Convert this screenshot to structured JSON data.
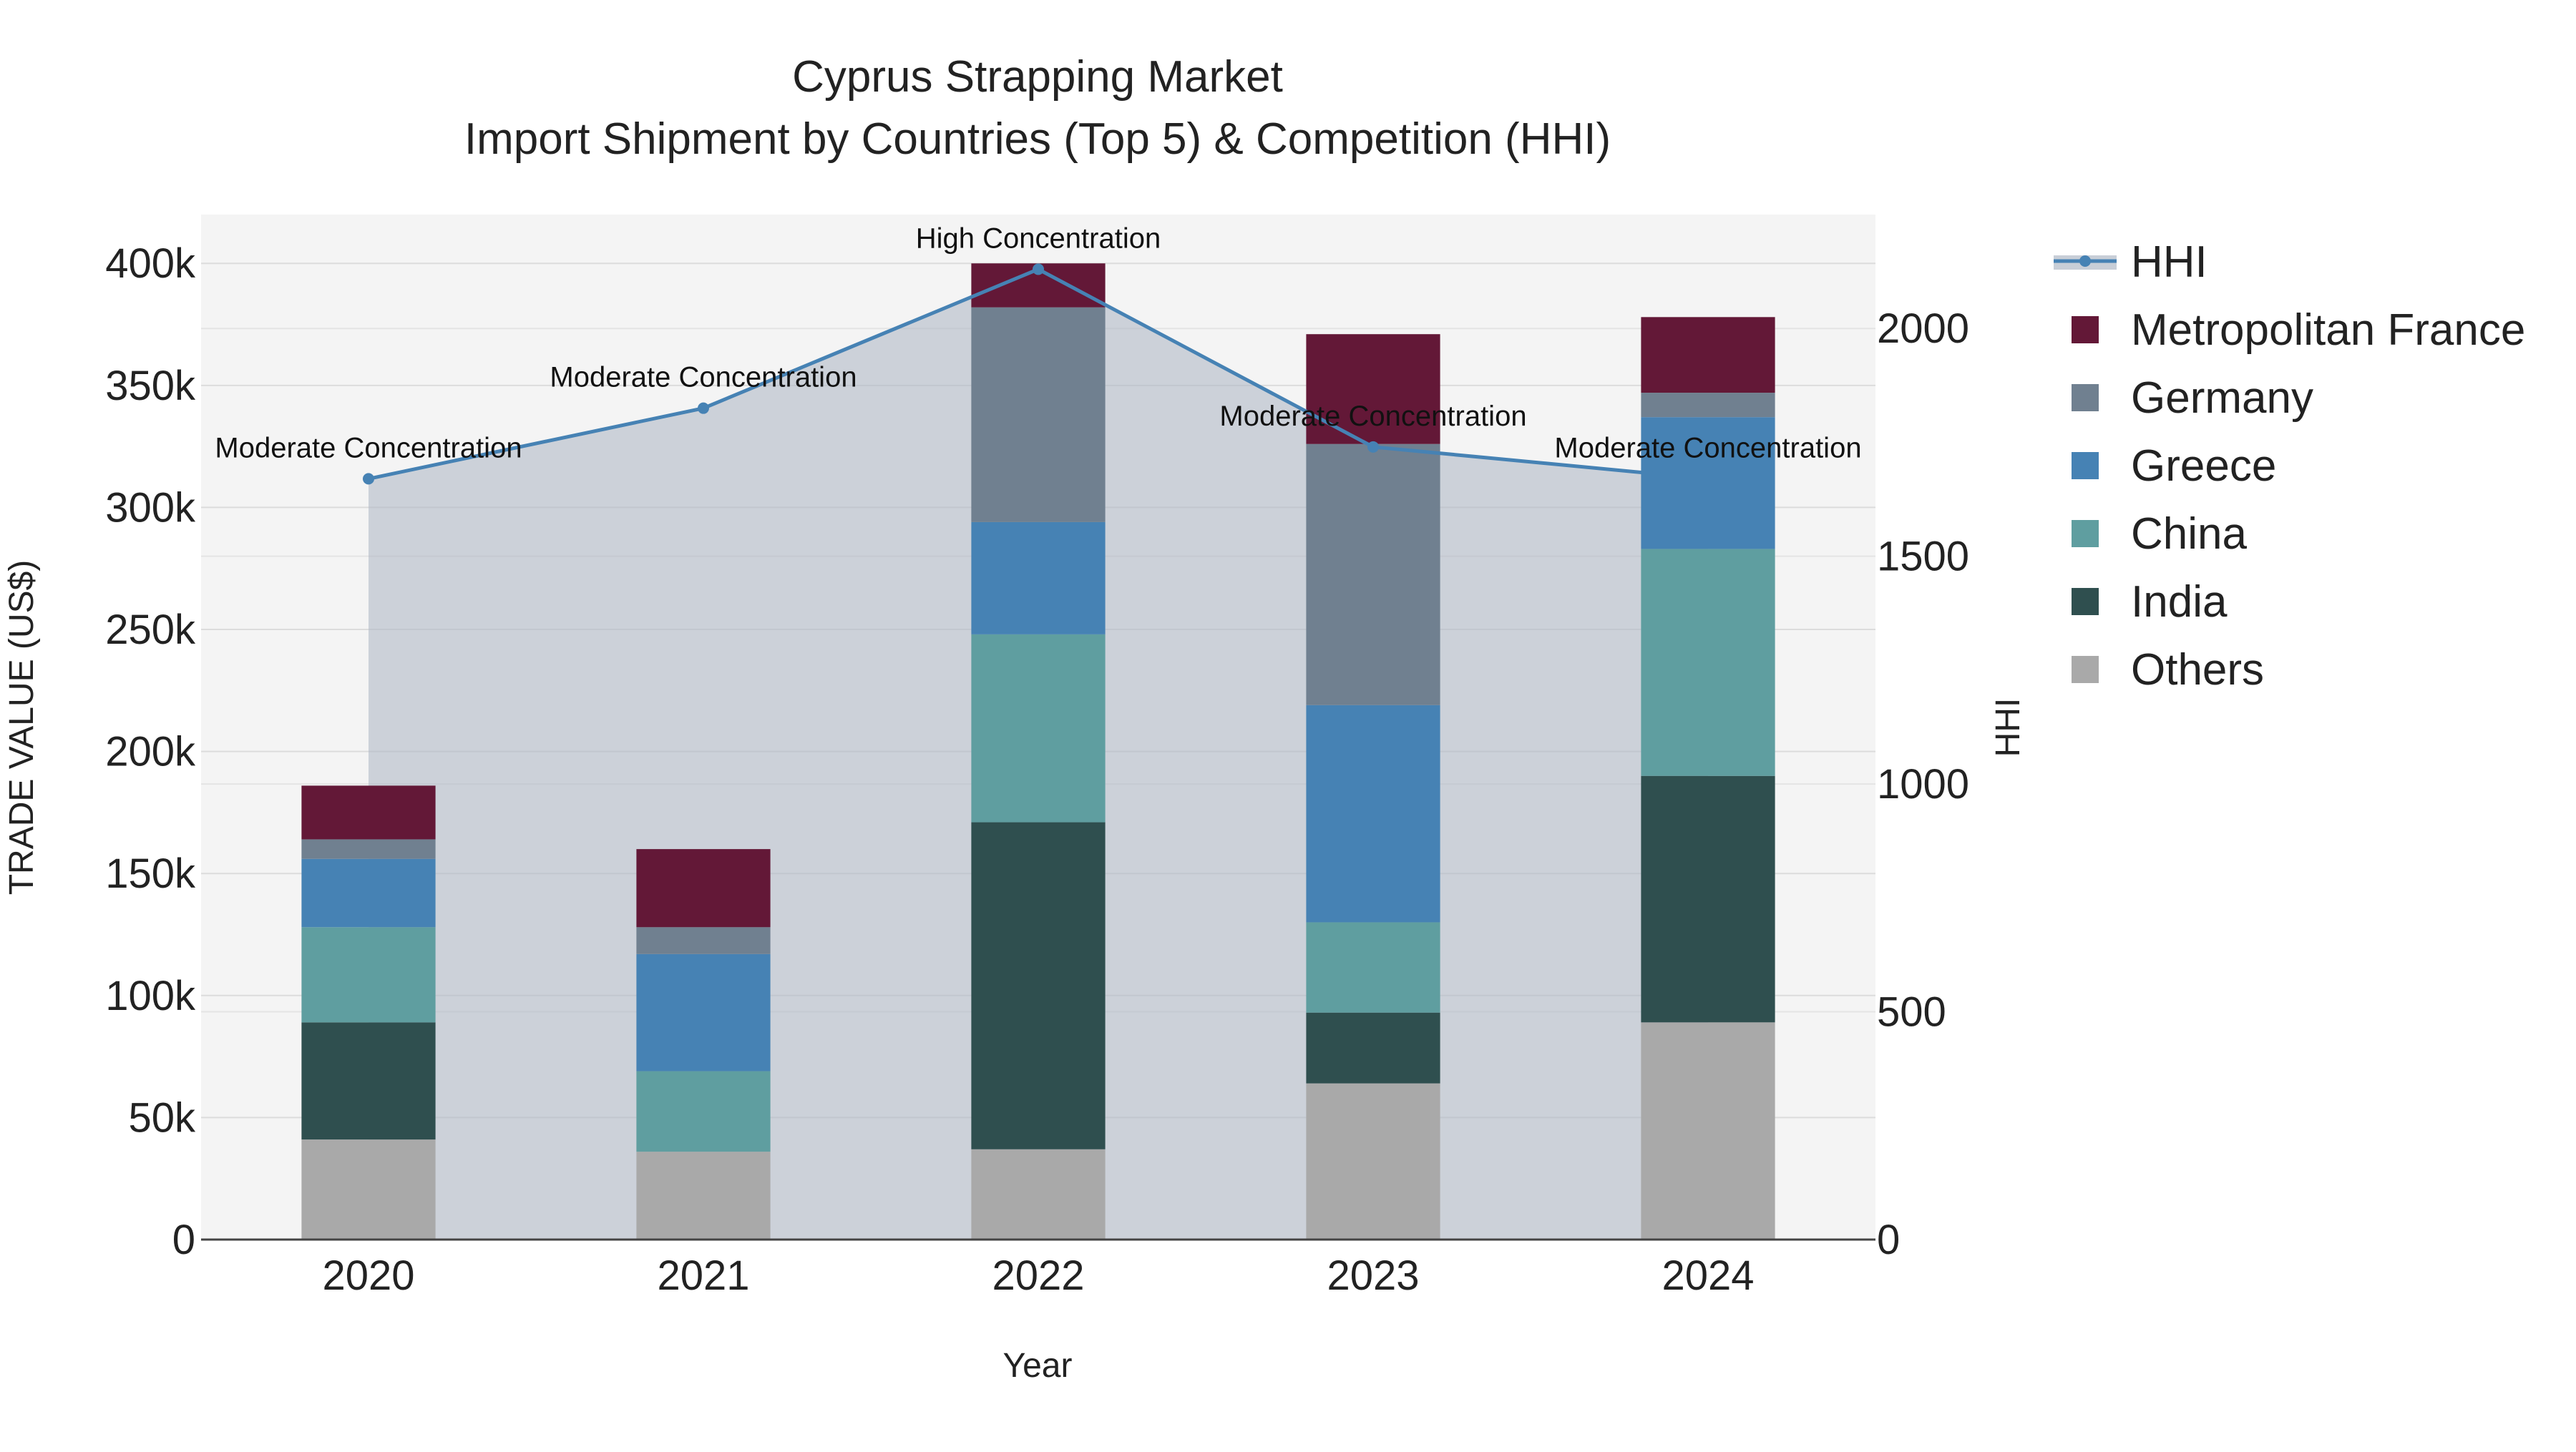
{
  "chart_data": {
    "type": "bar",
    "title": "Cyprus Strapping Market",
    "subtitle": "Import Shipment by Countries (Top 5) & Competition (HHI)",
    "xlabel": "Year",
    "ylabel": "TRADE VALUE (US$)",
    "y2label": "HHI",
    "categories": [
      "2020",
      "2021",
      "2022",
      "2023",
      "2024"
    ],
    "ylim": [
      0,
      420000
    ],
    "y_ticks": [
      0,
      50000,
      100000,
      150000,
      200000,
      250000,
      300000,
      350000,
      400000
    ],
    "y_tick_labels": [
      "0",
      "50k",
      "100k",
      "150k",
      "200k",
      "250k",
      "300k",
      "350k",
      "400k"
    ],
    "y2lim": [
      0,
      2250
    ],
    "y2_ticks": [
      0,
      500,
      1000,
      1500,
      2000
    ],
    "y2_tick_labels": [
      "0",
      "500",
      "1000",
      "1500",
      "2000"
    ],
    "series": [
      {
        "name": "Others",
        "color": "#a9a9a9",
        "values": [
          41000,
          36000,
          37000,
          64000,
          89000
        ]
      },
      {
        "name": "India",
        "color": "#2f4f4f",
        "values": [
          48000,
          0,
          134000,
          29000,
          101000
        ]
      },
      {
        "name": "China",
        "color": "#5f9ea0",
        "values": [
          39000,
          33000,
          77000,
          37000,
          93000
        ]
      },
      {
        "name": "Greece",
        "color": "#4682b4",
        "values": [
          28000,
          48000,
          46000,
          89000,
          54000
        ]
      },
      {
        "name": "Germany",
        "color": "#708090",
        "values": [
          8000,
          11000,
          88000,
          107000,
          10000
        ]
      },
      {
        "name": "Metropolitan France",
        "color": "#631837",
        "values": [
          22000,
          32000,
          18000,
          45000,
          31000
        ]
      }
    ],
    "hhi": {
      "name": "HHI",
      "color": "#4682b4",
      "values": [
        1670,
        1825,
        2130,
        1740,
        1670
      ],
      "annotations": [
        "Moderate Concentration",
        "Moderate Concentration",
        "High Concentration",
        "Moderate Concentration",
        "Moderate Concentration"
      ]
    },
    "legend": {
      "position": "top-right",
      "items": [
        "HHI",
        "Metropolitan France",
        "Germany",
        "Greece",
        "China",
        "India",
        "Others"
      ]
    }
  }
}
